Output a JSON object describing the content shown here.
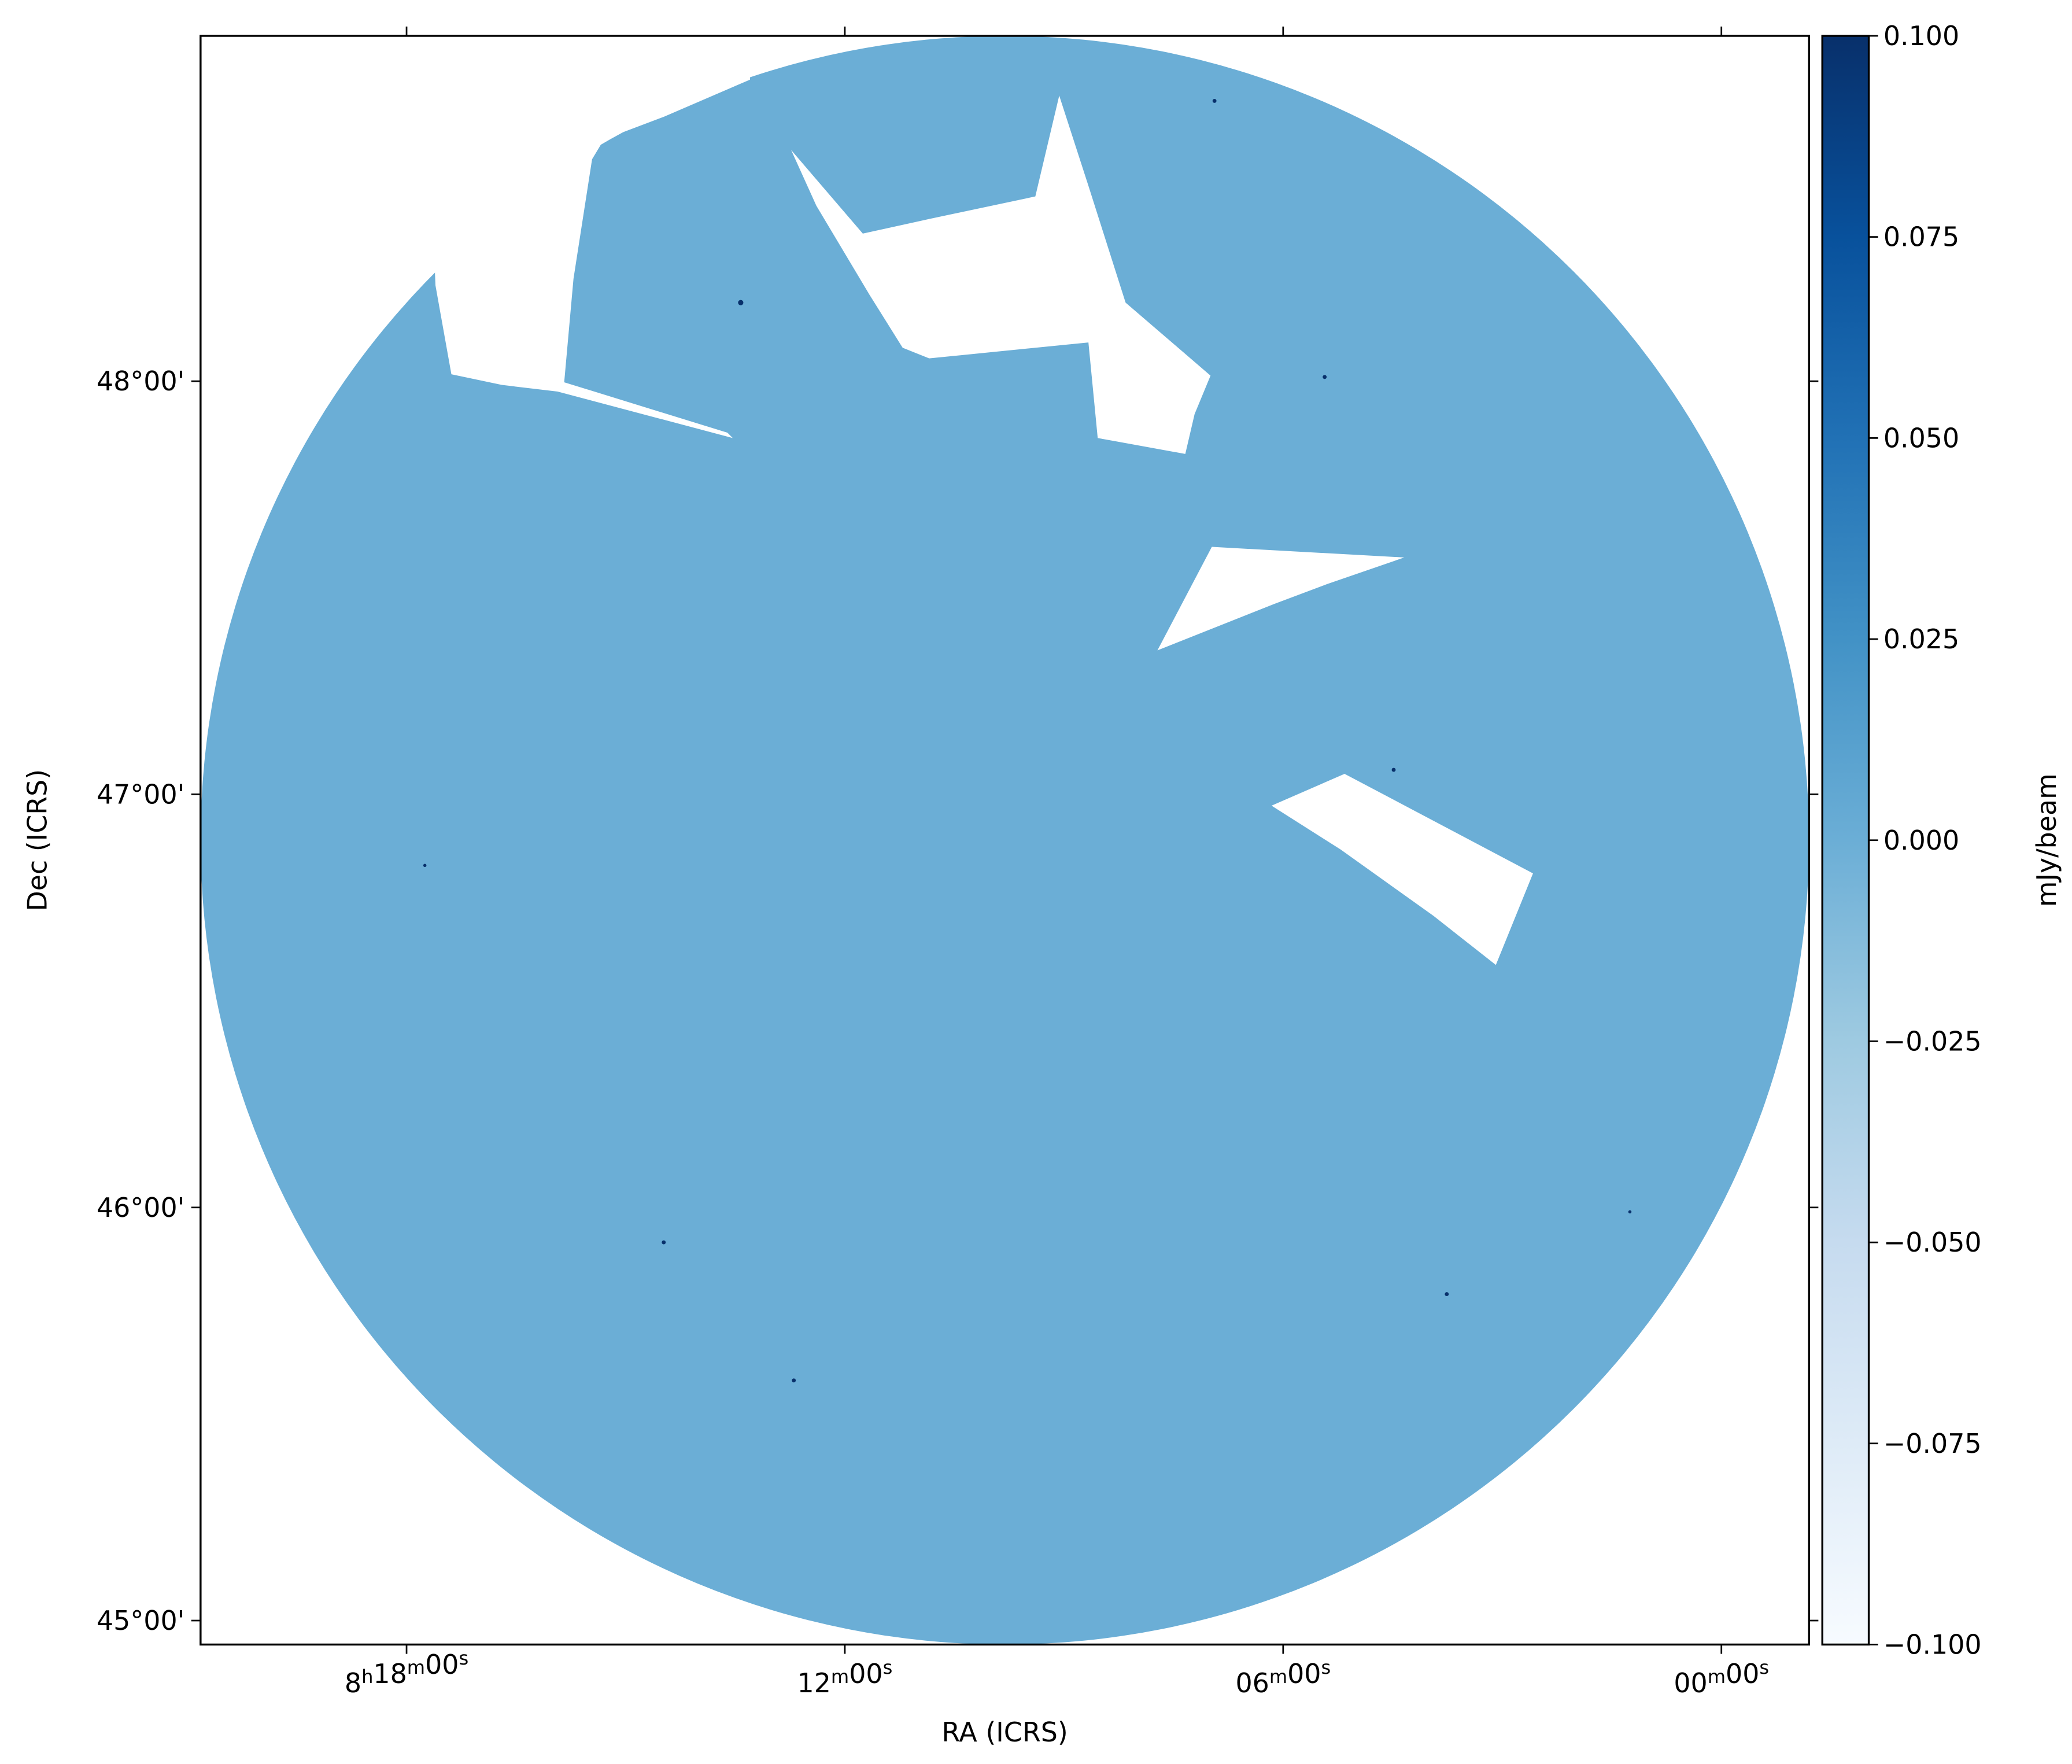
{
  "chart_data": {
    "type": "image",
    "x_label": "RA (ICRS)",
    "y_label": "Dec (ICRS)",
    "colorbar_label": "mJy/beam",
    "xlim": [
      8.347,
      7.98
    ],
    "xticks": [
      {
        "value": 8.3,
        "label": "8h18m00s"
      },
      {
        "value": 8.2,
        "label": "12m00s"
      },
      {
        "value": 8.1,
        "label": "06m00s"
      },
      {
        "value": 8.0,
        "label": "00m00s"
      }
    ],
    "ylim": [
      44.942,
      48.836
    ],
    "yticks": [
      {
        "value": 48,
        "label": "48°00'"
      },
      {
        "value": 47,
        "label": "47°00'"
      },
      {
        "value": 46,
        "label": "46°00'"
      },
      {
        "value": 45,
        "label": "45°00'"
      }
    ],
    "clim": [
      -0.1,
      0.1
    ],
    "cticks": [
      {
        "value": 0.1,
        "label": "0.100"
      },
      {
        "value": 0.075,
        "label": "0.075"
      },
      {
        "value": 0.05,
        "label": "0.050"
      },
      {
        "value": 0.025,
        "label": "0.025"
      },
      {
        "value": 0,
        "label": "0.000"
      },
      {
        "value": -0.025,
        "label": "−0.025"
      },
      {
        "value": -0.05,
        "label": "−0.050"
      },
      {
        "value": -0.075,
        "label": "−0.075"
      },
      {
        "value": -0.1,
        "label": "−0.100"
      }
    ],
    "colormap": [
      "#f7fbff",
      "#deebf7",
      "#c6dbef",
      "#9ecae1",
      "#6baed6",
      "#4292c6",
      "#2171b5",
      "#08519c",
      "#08306b"
    ]
  }
}
